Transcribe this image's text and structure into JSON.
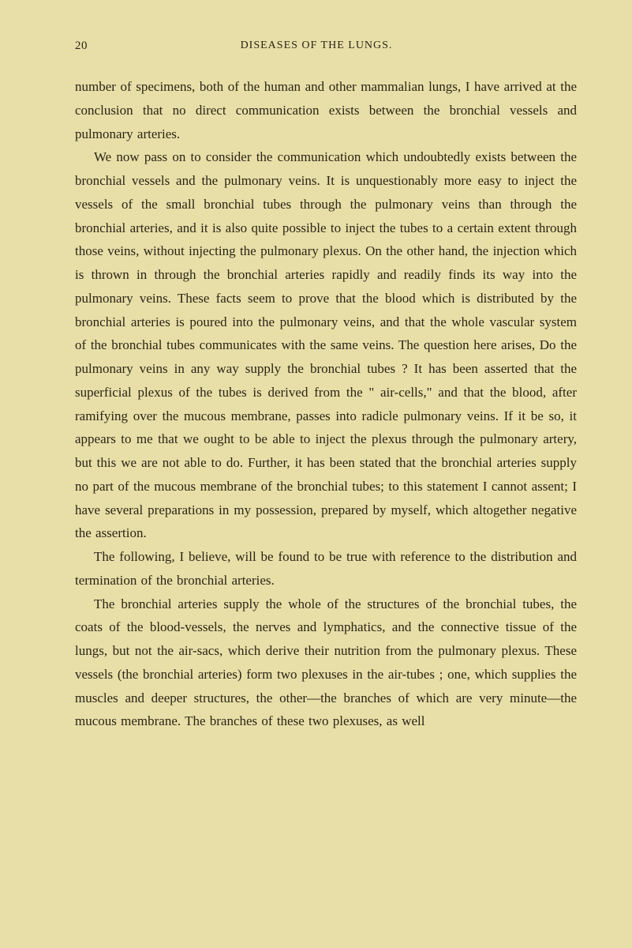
{
  "page": {
    "number": "20",
    "title": "DISEASES OF THE LUNGS."
  },
  "paragraphs": [
    "number of specimens, both of the human and other mammalian lungs, I have arrived at the conclusion that no direct communica­tion exists between the bronchial vessels and pulmonary arteries.",
    "We now pass on to consider the communication which undoubtedly exists between the bronchial vessels and the pulmo­nary veins. It is unquestionably more easy to inject the vessels of the small bronchial tubes through the pulmonary veins than through the bronchial arteries, and it is also quite possible to inject the tubes to a certain extent through those veins, without injecting the pulmonary plexus. On the other hand, the injection which is thrown in through the bronchial arteries rapidly and readily finds its way into the pulmonary veins. These facts seem to prove that the blood which is distributed by the bronchial arteries is poured into the pulmonary veins, and that the whole vascular system of the bronchial tubes communicates with the same veins. The question here arises, Do the pulmonary veins in any way supply the bronchial tubes ? It has been asserted that the superficial plexus of the tubes is derived from the \" air-cells,\" and that the blood, after ramifying over the mucous mem­brane, passes into radicle pulmonary veins. If it be so, it appears to me that we ought to be able to inject the plexus through the pulmonary artery, but this we are not able to do. Further, it has been stated that the bronchial arteries supply no part of the mucous membrane of the bronchial tubes; to this statement I cannot assent; I have several preparations in my possession, prepared by myself, which altogether negative the assertion.",
    "The following, I believe, will be found to be true with reference to the distribution and termination of the bronchial arteries.",
    "The bronchial arteries supply the whole of the structures of the bronchial tubes, the coats of the blood-vessels, the nerves and lymphatics, and the connective tissue of the lungs, but not the air-sacs, which derive their nutrition from the pulmonary plexus. These vessels (the bronchial arteries) form two plexuses in the air-tubes ; one, which supplies the muscles and deeper structures, the other—the branches of which are very minute—the mucous membrane. The branches of these two plexuses, as well"
  ],
  "styling": {
    "background_color": "#e8dfa8",
    "text_color": "#2a2416",
    "body_fontsize": 17,
    "header_fontsize": 15,
    "line_height": 1.75,
    "font_family": "Georgia, Times New Roman, serif"
  }
}
